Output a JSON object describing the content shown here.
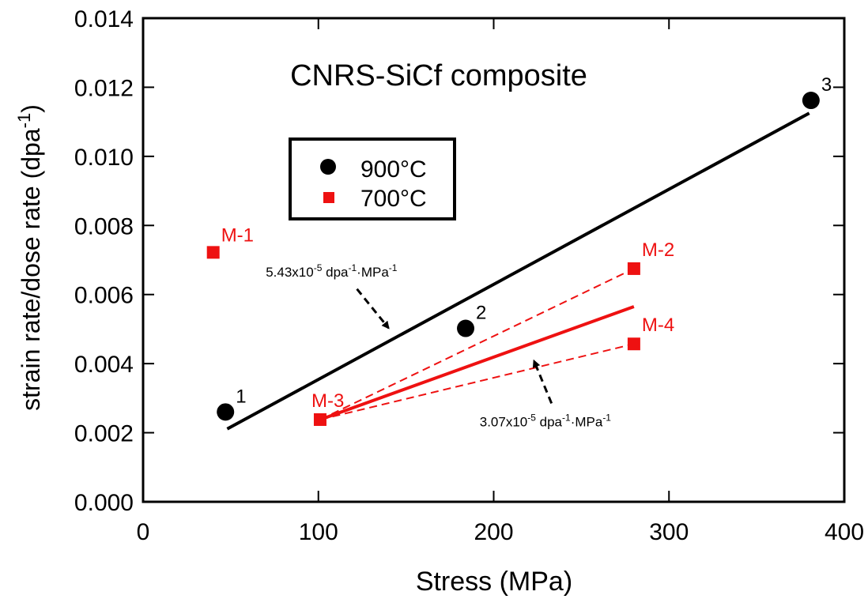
{
  "chart_data": {
    "type": "scatter",
    "title": "CNRS-SiCf composite",
    "xlabel": "Stress (MPa)",
    "ylabel_main": "strain rate/dose rate (dpa",
    "ylabel_sup": "-1",
    "ylabel_end": ")",
    "xlim": [
      0,
      400
    ],
    "ylim": [
      0,
      0.014
    ],
    "x_ticks": [
      0,
      100,
      200,
      300,
      400
    ],
    "x_tick_labels": [
      "0",
      "100",
      "200",
      "300",
      "400"
    ],
    "y_ticks": [
      0,
      0.002,
      0.004,
      0.006,
      0.008,
      0.01,
      0.012,
      0.014
    ],
    "y_tick_labels": [
      "0.000",
      "0.002",
      "0.004",
      "0.006",
      "0.008",
      "0.010",
      "0.012",
      "0.014"
    ],
    "grid": false,
    "legend_placement": "upper-left inset",
    "series": [
      {
        "name": "900°C",
        "color": "#000000",
        "marker": "circle",
        "points": [
          {
            "x": 47,
            "y": 0.0026,
            "label": "1"
          },
          {
            "x": 184,
            "y": 0.00502,
            "label": "2"
          },
          {
            "x": 381,
            "y": 0.01162,
            "label": "3"
          }
        ]
      },
      {
        "name": "700°C",
        "color": "#ee1111",
        "marker": "square",
        "points": [
          {
            "x": 40,
            "y": 0.00722,
            "label": "M-1"
          },
          {
            "x": 280,
            "y": 0.00675,
            "label": "M-2"
          },
          {
            "x": 101,
            "y": 0.00238,
            "label": "M-3"
          },
          {
            "x": 280,
            "y": 0.00457,
            "label": "M-4"
          }
        ]
      }
    ],
    "lines": [
      {
        "from": [
          48,
          0.00211
        ],
        "to": [
          380,
          0.01125
        ],
        "color": "#000000",
        "dash": false
      },
      {
        "from": [
          101,
          0.00238
        ],
        "to": [
          280,
          0.00565
        ],
        "color": "#ee1111",
        "dash": false
      },
      {
        "from": [
          101,
          0.00238
        ],
        "to": [
          280,
          0.00675
        ],
        "color": "#ee1111",
        "dash": true
      },
      {
        "from": [
          101,
          0.00238
        ],
        "to": [
          280,
          0.00457
        ],
        "color": "#ee1111",
        "dash": true
      }
    ],
    "annotations": [
      {
        "text": "5.43x10",
        "sup1": "-5",
        "mid": " dpa",
        "sup2": "-1",
        "mid2": "·MPa",
        "sup3": "-1",
        "text_at": [
          70,
          0.00652
        ],
        "arrow_from": [
          122,
          0.00616
        ],
        "arrow_to": [
          140,
          0.00503
        ]
      },
      {
        "text": "3.07x10",
        "sup1": "-5",
        "mid": " dpa",
        "sup2": "-1",
        "mid2": "·MPa",
        "sup3": "-1",
        "text_at": [
          192,
          0.00218
        ],
        "arrow_from": [
          233,
          0.00285
        ],
        "arrow_to": [
          223,
          0.00408
        ]
      }
    ]
  }
}
